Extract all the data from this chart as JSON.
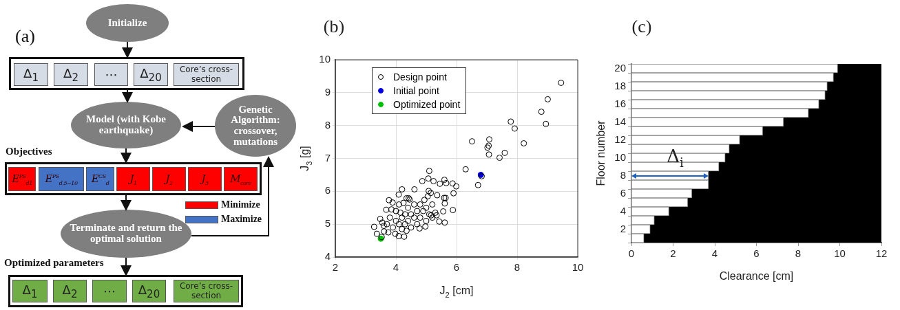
{
  "chart_data": [
    {
      "type": "other",
      "title": "(a)",
      "annotations": [
        "Initialize",
        "Δ$_{1}$",
        "Δ$_{2}$",
        "⋯",
        "Δ$_{20}$",
        "Core’s cross-section",
        "Model (with Kobe earthquake)",
        "Genetic Algorithm: crossover, mutations",
        "Objectives",
        "E$^{PS}$$_{d1}$",
        "E$^{PS}$$_{d,5−10}$",
        "E$^{CS}$$_{d}$",
        "J$_{1}$",
        "J$_{2}$",
        "J$_{3}$",
        "M$_{core}$",
        "Minimize",
        "Maximize",
        "Terminate and return the optimal solution",
        "Optimized parameters",
        "Δ$_{1}$",
        "Δ$_{2}$",
        "⋯",
        "Δ$_{20}$",
        "Core’s cross-section"
      ]
    },
    {
      "type": "scatter",
      "title": "(b)",
      "xlabel": "J$_{2}$ [cm]",
      "ylabel": "J$_{3}$ [g]",
      "xlim": [
        2,
        10
      ],
      "ylim": [
        4,
        10
      ],
      "xticks": [
        2,
        4,
        6,
        8,
        10
      ],
      "yticks": [
        4,
        5,
        6,
        7,
        8,
        9,
        10
      ],
      "grid": true,
      "legend": "top left",
      "marker": "circle",
      "series": [
        {
          "name": "Design point",
          "color": "#000000",
          "x": [
            9.45,
            9.01,
            8.8,
            8.95,
            7.79,
            7.92,
            8.22,
            6.51,
            7.08,
            7.06,
            7.02,
            7.07,
            7.59,
            7.42,
            6.3,
            6.71,
            6.83,
            5.1,
            5.99,
            5.87,
            5.6,
            5.66,
            5.45,
            4.87,
            5.07,
            5.24,
            4.61,
            4.2,
            5.9,
            5.59,
            5.64,
            5.61,
            5.36,
            5.08,
            5.88,
            5.56,
            5.61,
            5.43,
            4.97,
            4.78,
            5.16,
            5.34,
            4.94,
            4.42,
            3.77,
            3.89,
            3.68,
            3.48,
            3.28,
            3.37,
            3.98,
            4.09,
            4.27,
            3.61,
            3.53,
            4.09,
            4.35,
            3.7,
            3.8,
            3.9,
            4.0,
            4.0,
            4.1,
            4.1,
            4.2,
            4.2,
            4.3,
            4.3,
            4.4,
            4.4,
            4.5,
            4.5,
            4.6,
            4.6,
            4.7,
            4.7,
            4.8,
            4.8,
            4.9,
            5.0,
            5.0,
            5.1,
            5.2,
            5.2,
            5.3,
            3.6,
            3.75,
            3.55,
            4.45,
            4.25,
            3.85,
            5.05,
            5.15,
            4.35,
            4.15
          ],
          "values": [
            9.3,
            8.8,
            8.42,
            8.05,
            8.12,
            7.91,
            7.46,
            7.52,
            7.58,
            7.39,
            7.33,
            7.12,
            7.17,
            7.02,
            6.67,
            6.19,
            6.46,
            6.62,
            6.15,
            6.24,
            6.35,
            6.25,
            6.23,
            6.31,
            6.39,
            6.31,
            6.06,
            6.06,
            5.94,
            5.8,
            5.8,
            5.63,
            5.88,
            6.01,
            5.43,
            5.39,
            5.05,
            5.08,
            4.93,
            4.87,
            5.27,
            5.27,
            5.74,
            5.79,
            5.73,
            5.66,
            5.44,
            5.16,
            4.92,
            4.71,
            4.71,
            4.64,
            4.62,
            4.78,
            4.61,
            5.9,
            5.79,
            5.0,
            5.2,
            4.9,
            5.1,
            5.4,
            5.0,
            5.6,
            5.2,
            4.85,
            5.3,
            5.0,
            5.5,
            5.1,
            5.3,
            4.9,
            5.6,
            5.2,
            5.0,
            5.4,
            5.6,
            5.2,
            5.4,
            5.5,
            5.1,
            5.3,
            5.6,
            5.2,
            5.35,
            4.95,
            4.75,
            5.05,
            5.75,
            5.65,
            5.45,
            5.85,
            5.95,
            4.8,
            5.35
          ]
        },
        {
          "name": "Initial point",
          "color": "#0000e0",
          "x": [
            6.8
          ],
          "values": [
            6.5
          ]
        },
        {
          "name": "Optimized point",
          "color": "#00c000",
          "x": [
            3.5
          ],
          "values": [
            4.56
          ]
        }
      ]
    },
    {
      "type": "bar",
      "orientation": "horizontal",
      "stacked": true,
      "title": "(c)",
      "xlabel": "Clearance [cm]",
      "ylabel": "Floor number",
      "xlim": [
        0,
        12
      ],
      "xticks": [
        0,
        2,
        4,
        6,
        8,
        10,
        12
      ],
      "categories": [
        "20",
        null,
        "18",
        null,
        "16",
        null,
        "14",
        null,
        "12",
        null,
        "10",
        null,
        "8",
        null,
        "6",
        null,
        "4",
        null,
        "2",
        null
      ],
      "series": [
        {
          "color": "#ffffff",
          "values": [
            9.9,
            9.7,
            9.4,
            9.3,
            9.0,
            8.5,
            7.3,
            6.3,
            5.2,
            4.7,
            4.5,
            4.2,
            3.7,
            3.7,
            2.9,
            2.7,
            1.8,
            1.1,
            0.9,
            0.6
          ]
        },
        {
          "color": "#000000",
          "values": [
            2.1,
            2.3,
            2.6,
            2.7,
            3.0,
            3.5,
            4.7,
            5.7,
            6.8,
            7.3,
            7.5,
            7.8,
            8.3,
            8.3,
            9.1,
            9.3,
            10.2,
            10.9,
            11.1,
            11.4
          ]
        }
      ],
      "annotations": [
        {
          "text": "Δ$_{i}$",
          "x": 2.1,
          "y": "10"
        }
      ]
    }
  ]
}
